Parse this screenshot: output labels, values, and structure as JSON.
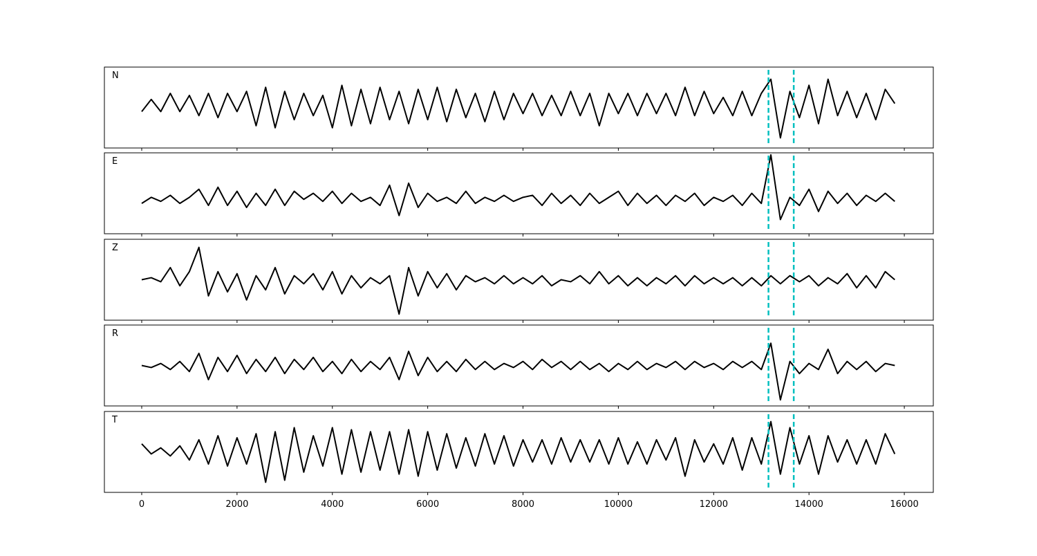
{
  "chart_data": [
    {
      "type": "line",
      "label": "N",
      "color": "#000000",
      "xlim": [
        -783,
        16608
      ],
      "ylim": [
        -1,
        1
      ],
      "xticks": [
        0,
        2000,
        4000,
        6000,
        8000,
        10000,
        12000,
        14000,
        16000
      ],
      "xticklabels": false,
      "vlines": [
        13150,
        13680
      ],
      "vline_color": "#00bfbf",
      "vline_style": "dashed",
      "x": [
        0,
        200,
        400,
        600,
        800,
        1000,
        1200,
        1400,
        1600,
        1800,
        2000,
        2200,
        2400,
        2600,
        2800,
        3000,
        3200,
        3400,
        3600,
        3800,
        4000,
        4200,
        4400,
        4600,
        4800,
        5000,
        5200,
        5400,
        5600,
        5800,
        6000,
        6200,
        6400,
        6600,
        6800,
        7000,
        7200,
        7400,
        7600,
        7800,
        8000,
        8200,
        8400,
        8600,
        8800,
        9000,
        9200,
        9400,
        9600,
        9800,
        10000,
        10200,
        10400,
        10600,
        10800,
        11000,
        11200,
        11400,
        11600,
        11800,
        12000,
        12200,
        12400,
        12600,
        12800,
        13000,
        13200,
        13400,
        13600,
        13800,
        14000,
        14200,
        14400,
        14600,
        14800,
        15000,
        15200,
        15400,
        15600,
        15800
      ],
      "values": [
        -0.1,
        0.2,
        -0.1,
        0.35,
        -0.1,
        0.3,
        -0.2,
        0.35,
        -0.25,
        0.35,
        -0.1,
        0.4,
        -0.45,
        0.5,
        -0.5,
        0.4,
        -0.3,
        0.35,
        -0.2,
        0.3,
        -0.5,
        0.55,
        -0.45,
        0.45,
        -0.4,
        0.5,
        -0.3,
        0.4,
        -0.4,
        0.45,
        -0.3,
        0.5,
        -0.35,
        0.45,
        -0.25,
        0.35,
        -0.35,
        0.4,
        -0.3,
        0.35,
        -0.15,
        0.35,
        -0.2,
        0.3,
        -0.2,
        0.4,
        -0.2,
        0.35,
        -0.45,
        0.35,
        -0.15,
        0.35,
        -0.2,
        0.35,
        -0.15,
        0.35,
        -0.2,
        0.5,
        -0.2,
        0.4,
        -0.15,
        0.25,
        -0.2,
        0.4,
        -0.2,
        0.35,
        0.7,
        -0.75,
        0.4,
        -0.25,
        0.55,
        -0.4,
        0.7,
        -0.2,
        0.4,
        -0.25,
        0.35,
        -0.3,
        0.45,
        0.1
      ]
    },
    {
      "type": "line",
      "label": "E",
      "color": "#000000",
      "xlim": [
        -783,
        16608
      ],
      "ylim": [
        -1,
        1
      ],
      "xticks": [
        0,
        2000,
        4000,
        6000,
        8000,
        10000,
        12000,
        14000,
        16000
      ],
      "xticklabels": false,
      "vlines": [
        13150,
        13680
      ],
      "vline_color": "#00bfbf",
      "vline_style": "dashed",
      "x": [
        0,
        200,
        400,
        600,
        800,
        1000,
        1200,
        1400,
        1600,
        1800,
        2000,
        2200,
        2400,
        2600,
        2800,
        3000,
        3200,
        3400,
        3600,
        3800,
        4000,
        4200,
        4400,
        4600,
        4800,
        5000,
        5200,
        5400,
        5600,
        5800,
        6000,
        6200,
        6400,
        6600,
        6800,
        7000,
        7200,
        7400,
        7600,
        7800,
        8000,
        8200,
        8400,
        8600,
        8800,
        9000,
        9200,
        9400,
        9600,
        9800,
        10000,
        10200,
        10400,
        10600,
        10800,
        11000,
        11200,
        11400,
        11600,
        11800,
        12000,
        12200,
        12400,
        12600,
        12800,
        13000,
        13200,
        13400,
        13600,
        13800,
        14000,
        14200,
        14400,
        14600,
        14800,
        15000,
        15200,
        15400,
        15600,
        15800
      ],
      "values": [
        -0.25,
        -0.1,
        -0.2,
        -0.05,
        -0.25,
        -0.1,
        0.1,
        -0.3,
        0.15,
        -0.3,
        0.05,
        -0.35,
        0.0,
        -0.3,
        0.1,
        -0.3,
        0.05,
        -0.15,
        0.0,
        -0.2,
        0.05,
        -0.25,
        0.0,
        -0.2,
        -0.1,
        -0.3,
        0.2,
        -0.55,
        0.25,
        -0.35,
        0.0,
        -0.2,
        -0.1,
        -0.25,
        0.05,
        -0.25,
        -0.1,
        -0.2,
        -0.05,
        -0.2,
        -0.1,
        -0.05,
        -0.3,
        0.0,
        -0.25,
        -0.05,
        -0.3,
        0.0,
        -0.25,
        -0.1,
        0.05,
        -0.3,
        0.0,
        -0.25,
        -0.05,
        -0.3,
        -0.05,
        -0.2,
        0.0,
        -0.3,
        -0.1,
        -0.2,
        -0.05,
        -0.3,
        0.0,
        -0.25,
        0.95,
        -0.65,
        -0.1,
        -0.3,
        0.1,
        -0.45,
        0.05,
        -0.25,
        0.0,
        -0.3,
        -0.05,
        -0.2,
        0.0,
        -0.2
      ]
    },
    {
      "type": "line",
      "label": "Z",
      "color": "#000000",
      "xlim": [
        -783,
        16608
      ],
      "ylim": [
        -1,
        1
      ],
      "xticks": [
        0,
        2000,
        4000,
        6000,
        8000,
        10000,
        12000,
        14000,
        16000
      ],
      "xticklabels": false,
      "vlines": [
        13150,
        13680
      ],
      "vline_color": "#00bfbf",
      "vline_style": "dashed",
      "x": [
        0,
        200,
        400,
        600,
        800,
        1000,
        1200,
        1400,
        1600,
        1800,
        2000,
        2200,
        2400,
        2600,
        2800,
        3000,
        3200,
        3400,
        3600,
        3800,
        4000,
        4200,
        4400,
        4600,
        4800,
        5000,
        5200,
        5400,
        5600,
        5800,
        6000,
        6200,
        6400,
        6600,
        6800,
        7000,
        7200,
        7400,
        7600,
        7800,
        8000,
        8200,
        8400,
        8600,
        8800,
        9000,
        9200,
        9400,
        9600,
        9800,
        10000,
        10200,
        10400,
        10600,
        10800,
        11000,
        11200,
        11400,
        11600,
        11800,
        12000,
        12200,
        12400,
        12600,
        12800,
        13000,
        13200,
        13400,
        13600,
        13800,
        14000,
        14200,
        14400,
        14600,
        14800,
        15000,
        15200,
        15400,
        15600,
        15800
      ],
      "values": [
        0.0,
        0.05,
        -0.05,
        0.3,
        -0.15,
        0.2,
        0.8,
        -0.4,
        0.2,
        -0.3,
        0.15,
        -0.5,
        0.1,
        -0.25,
        0.3,
        -0.35,
        0.1,
        -0.1,
        0.15,
        -0.25,
        0.2,
        -0.35,
        0.1,
        -0.2,
        0.05,
        -0.1,
        0.1,
        -0.85,
        0.3,
        -0.4,
        0.2,
        -0.2,
        0.15,
        -0.25,
        0.1,
        -0.05,
        0.05,
        -0.1,
        0.1,
        -0.1,
        0.05,
        -0.1,
        0.1,
        -0.15,
        0.0,
        -0.05,
        0.1,
        -0.1,
        0.2,
        -0.1,
        0.1,
        -0.15,
        0.05,
        -0.15,
        0.05,
        -0.1,
        0.1,
        -0.15,
        0.1,
        -0.1,
        0.05,
        -0.1,
        0.05,
        -0.15,
        0.05,
        -0.15,
        0.1,
        -0.1,
        0.1,
        -0.05,
        0.1,
        -0.15,
        0.05,
        -0.1,
        0.15,
        -0.2,
        0.1,
        -0.2,
        0.2,
        0.0
      ]
    },
    {
      "type": "line",
      "label": "R",
      "color": "#000000",
      "xlim": [
        -783,
        16608
      ],
      "ylim": [
        -1,
        1
      ],
      "xticks": [
        0,
        2000,
        4000,
        6000,
        8000,
        10000,
        12000,
        14000,
        16000
      ],
      "xticklabels": false,
      "vlines": [
        13150,
        13680
      ],
      "vline_color": "#00bfbf",
      "vline_style": "dashed",
      "x": [
        0,
        200,
        400,
        600,
        800,
        1000,
        1200,
        1400,
        1600,
        1800,
        2000,
        2200,
        2400,
        2600,
        2800,
        3000,
        3200,
        3400,
        3600,
        3800,
        4000,
        4200,
        4400,
        4600,
        4800,
        5000,
        5200,
        5400,
        5600,
        5800,
        6000,
        6200,
        6400,
        6600,
        6800,
        7000,
        7200,
        7400,
        7600,
        7800,
        8000,
        8200,
        8400,
        8600,
        8800,
        9000,
        9200,
        9400,
        9600,
        9800,
        10000,
        10200,
        10400,
        10600,
        10800,
        11000,
        11200,
        11400,
        11600,
        11800,
        12000,
        12200,
        12400,
        12600,
        12800,
        13000,
        13200,
        13400,
        13600,
        13800,
        14000,
        14200,
        14400,
        14600,
        14800,
        15000,
        15200,
        15400,
        15600,
        15800
      ],
      "values": [
        0.0,
        -0.05,
        0.05,
        -0.1,
        0.1,
        -0.15,
        0.3,
        -0.35,
        0.2,
        -0.15,
        0.25,
        -0.2,
        0.15,
        -0.15,
        0.2,
        -0.2,
        0.15,
        -0.1,
        0.2,
        -0.15,
        0.1,
        -0.2,
        0.15,
        -0.15,
        0.1,
        -0.1,
        0.2,
        -0.35,
        0.35,
        -0.25,
        0.2,
        -0.15,
        0.1,
        -0.15,
        0.15,
        -0.1,
        0.1,
        -0.1,
        0.05,
        -0.05,
        0.1,
        -0.1,
        0.15,
        -0.05,
        0.1,
        -0.1,
        0.1,
        -0.1,
        0.05,
        -0.15,
        0.05,
        -0.1,
        0.1,
        -0.1,
        0.05,
        -0.05,
        0.1,
        -0.1,
        0.1,
        -0.05,
        0.05,
        -0.1,
        0.1,
        -0.05,
        0.1,
        -0.1,
        0.55,
        -0.85,
        0.1,
        -0.2,
        0.05,
        -0.1,
        0.4,
        -0.2,
        0.1,
        -0.1,
        0.1,
        -0.15,
        0.05,
        0.0
      ]
    },
    {
      "type": "line",
      "label": "T",
      "color": "#000000",
      "xlim": [
        -783,
        16608
      ],
      "ylim": [
        -1,
        1
      ],
      "xticks": [
        0,
        2000,
        4000,
        6000,
        8000,
        10000,
        12000,
        14000,
        16000
      ],
      "xticklabels": true,
      "vlines": [
        13150,
        13680
      ],
      "vline_color": "#00bfbf",
      "vline_style": "dashed",
      "x": [
        0,
        200,
        400,
        600,
        800,
        1000,
        1200,
        1400,
        1600,
        1800,
        2000,
        2200,
        2400,
        2600,
        2800,
        3000,
        3200,
        3400,
        3600,
        3800,
        4000,
        4200,
        4400,
        4600,
        4800,
        5000,
        5200,
        5400,
        5600,
        5800,
        6000,
        6200,
        6400,
        6600,
        6800,
        7000,
        7200,
        7400,
        7600,
        7800,
        8000,
        8200,
        8400,
        8600,
        8800,
        9000,
        9200,
        9400,
        9600,
        9800,
        10000,
        10200,
        10400,
        10600,
        10800,
        11000,
        11200,
        11400,
        11600,
        11800,
        12000,
        12200,
        12400,
        12600,
        12800,
        13000,
        13200,
        13400,
        13600,
        13800,
        14000,
        14200,
        14400,
        14600,
        14800,
        15000,
        15200,
        15400,
        15600,
        15800
      ],
      "values": [
        0.2,
        -0.05,
        0.1,
        -0.1,
        0.15,
        -0.2,
        0.3,
        -0.3,
        0.4,
        -0.35,
        0.35,
        -0.3,
        0.45,
        -0.75,
        0.5,
        -0.7,
        0.6,
        -0.5,
        0.4,
        -0.35,
        0.6,
        -0.55,
        0.55,
        -0.5,
        0.5,
        -0.45,
        0.5,
        -0.55,
        0.55,
        -0.6,
        0.5,
        -0.45,
        0.45,
        -0.4,
        0.35,
        -0.35,
        0.45,
        -0.3,
        0.4,
        -0.35,
        0.3,
        -0.25,
        0.3,
        -0.3,
        0.35,
        -0.25,
        0.3,
        -0.25,
        0.3,
        -0.3,
        0.35,
        -0.3,
        0.25,
        -0.3,
        0.3,
        -0.2,
        0.35,
        -0.6,
        0.3,
        -0.25,
        0.2,
        -0.3,
        0.35,
        -0.45,
        0.35,
        -0.3,
        0.75,
        -0.55,
        0.6,
        -0.3,
        0.4,
        -0.55,
        0.4,
        -0.25,
        0.3,
        -0.3,
        0.3,
        -0.3,
        0.45,
        -0.05
      ]
    }
  ]
}
